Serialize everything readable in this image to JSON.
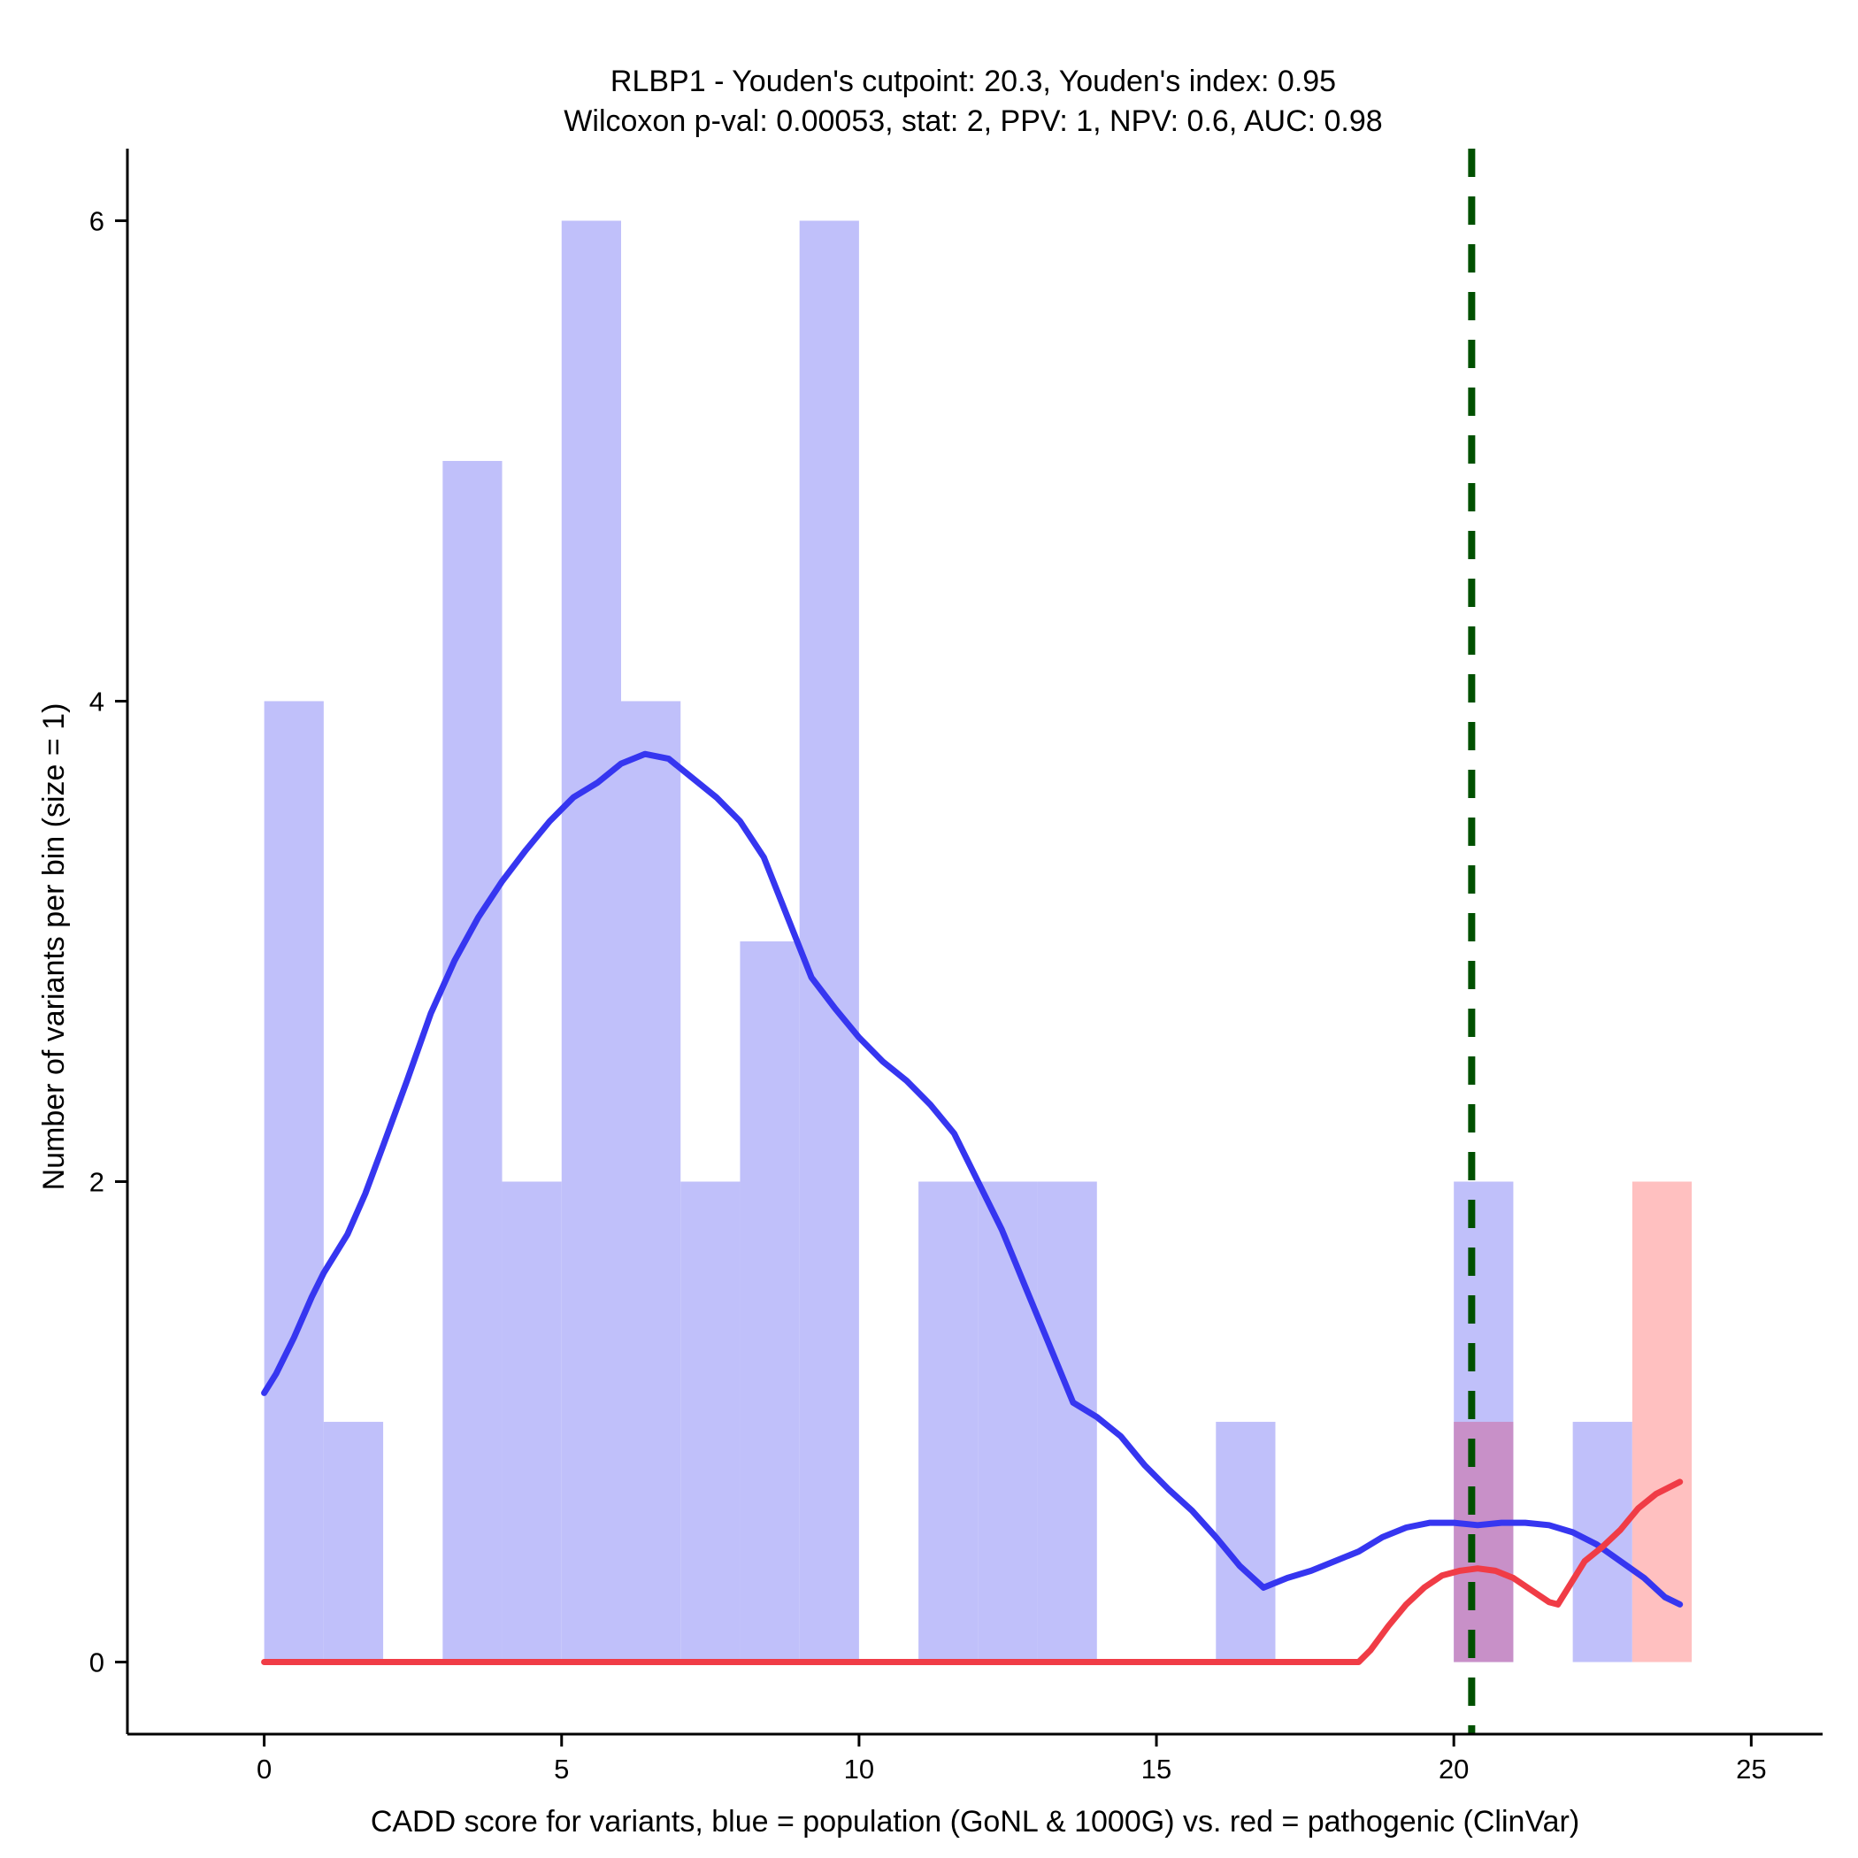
{
  "chart_data": {
    "type": "bar",
    "title_line1": "RLBP1 - Youden's cutpoint: 20.3, Youden's index: 0.95",
    "title_line2": "Wilcoxon p-val: 0.00053, stat: 2, PPV: 1, NPV: 0.6, AUC: 0.98",
    "xlabel": "CADD score for variants, blue = population (GoNL & 1000G) vs. red = pathogenic (ClinVar)",
    "ylabel": "Number of variants per bin (size = 1)",
    "xlim": [
      -2.3,
      26.2
    ],
    "ylim": [
      -0.3,
      6.3
    ],
    "x_ticks": [
      0,
      5,
      10,
      15,
      20,
      25
    ],
    "y_ticks": [
      0,
      2,
      4,
      6
    ],
    "bin_width": 1,
    "cutpoint": 20.3,
    "colors": {
      "population_bar": "#c0c0fa",
      "pathogenic_bar": "#ffc0c0",
      "overlap_bar": "#c890c8",
      "population_line": "#3636f0",
      "pathogenic_line": "#f03c46",
      "cutpoint_line": "#005000"
    },
    "series": [
      {
        "name": "population (GoNL & 1000G)",
        "bins": [
          [
            0,
            4
          ],
          [
            1,
            1
          ],
          [
            2,
            0
          ],
          [
            3,
            5
          ],
          [
            4,
            2
          ],
          [
            5,
            6
          ],
          [
            6,
            4
          ],
          [
            7,
            2
          ],
          [
            8,
            3
          ],
          [
            9,
            6
          ],
          [
            10,
            0
          ],
          [
            11,
            2
          ],
          [
            12,
            2
          ],
          [
            13,
            2
          ],
          [
            14,
            0
          ],
          [
            15,
            0
          ],
          [
            16,
            1
          ],
          [
            17,
            0
          ],
          [
            18,
            0
          ],
          [
            19,
            0
          ],
          [
            20,
            2
          ],
          [
            21,
            0
          ],
          [
            22,
            1
          ],
          [
            23,
            0
          ]
        ],
        "density": [
          [
            0.0,
            1.12
          ],
          [
            0.2,
            1.2
          ],
          [
            0.5,
            1.35
          ],
          [
            0.8,
            1.52
          ],
          [
            1.0,
            1.62
          ],
          [
            1.4,
            1.78
          ],
          [
            1.7,
            1.95
          ],
          [
            2.0,
            2.15
          ],
          [
            2.4,
            2.42
          ],
          [
            2.8,
            2.7
          ],
          [
            3.2,
            2.92
          ],
          [
            3.6,
            3.1
          ],
          [
            4.0,
            3.25
          ],
          [
            4.4,
            3.38
          ],
          [
            4.8,
            3.5
          ],
          [
            5.2,
            3.6
          ],
          [
            5.6,
            3.66
          ],
          [
            6.0,
            3.74
          ],
          [
            6.4,
            3.78
          ],
          [
            6.8,
            3.76
          ],
          [
            7.2,
            3.68
          ],
          [
            7.6,
            3.6
          ],
          [
            8.0,
            3.5
          ],
          [
            8.4,
            3.35
          ],
          [
            8.8,
            3.1
          ],
          [
            9.2,
            2.85
          ],
          [
            9.6,
            2.72
          ],
          [
            10.0,
            2.6
          ],
          [
            10.4,
            2.5
          ],
          [
            10.8,
            2.42
          ],
          [
            11.2,
            2.32
          ],
          [
            11.6,
            2.2
          ],
          [
            12.0,
            2.0
          ],
          [
            12.4,
            1.8
          ],
          [
            12.8,
            1.56
          ],
          [
            13.2,
            1.32
          ],
          [
            13.6,
            1.08
          ],
          [
            14.0,
            1.02
          ],
          [
            14.4,
            0.94
          ],
          [
            14.8,
            0.82
          ],
          [
            15.2,
            0.72
          ],
          [
            15.6,
            0.63
          ],
          [
            16.0,
            0.52
          ],
          [
            16.4,
            0.4
          ],
          [
            16.8,
            0.31
          ],
          [
            17.2,
            0.35
          ],
          [
            17.6,
            0.38
          ],
          [
            18.0,
            0.42
          ],
          [
            18.4,
            0.46
          ],
          [
            18.8,
            0.52
          ],
          [
            19.2,
            0.56
          ],
          [
            19.6,
            0.58
          ],
          [
            20.0,
            0.58
          ],
          [
            20.4,
            0.57
          ],
          [
            20.8,
            0.58
          ],
          [
            21.2,
            0.58
          ],
          [
            21.6,
            0.57
          ],
          [
            22.0,
            0.54
          ],
          [
            22.4,
            0.49
          ],
          [
            22.8,
            0.42
          ],
          [
            23.2,
            0.35
          ],
          [
            23.55,
            0.27
          ],
          [
            23.8,
            0.24
          ]
        ]
      },
      {
        "name": "pathogenic (ClinVar)",
        "bins": [
          [
            20,
            1
          ],
          [
            23,
            2
          ]
        ],
        "density": [
          [
            0.0,
            0.0
          ],
          [
            18.4,
            0.0
          ],
          [
            18.6,
            0.05
          ],
          [
            18.9,
            0.15
          ],
          [
            19.2,
            0.24
          ],
          [
            19.5,
            0.31
          ],
          [
            19.8,
            0.36
          ],
          [
            20.1,
            0.38
          ],
          [
            20.4,
            0.39
          ],
          [
            20.7,
            0.38
          ],
          [
            21.0,
            0.35
          ],
          [
            21.3,
            0.3
          ],
          [
            21.6,
            0.25
          ],
          [
            21.75,
            0.24
          ],
          [
            21.9,
            0.3
          ],
          [
            22.2,
            0.42
          ],
          [
            22.5,
            0.48
          ],
          [
            22.8,
            0.55
          ],
          [
            23.1,
            0.64
          ],
          [
            23.4,
            0.7
          ],
          [
            23.8,
            0.75
          ]
        ]
      }
    ]
  }
}
